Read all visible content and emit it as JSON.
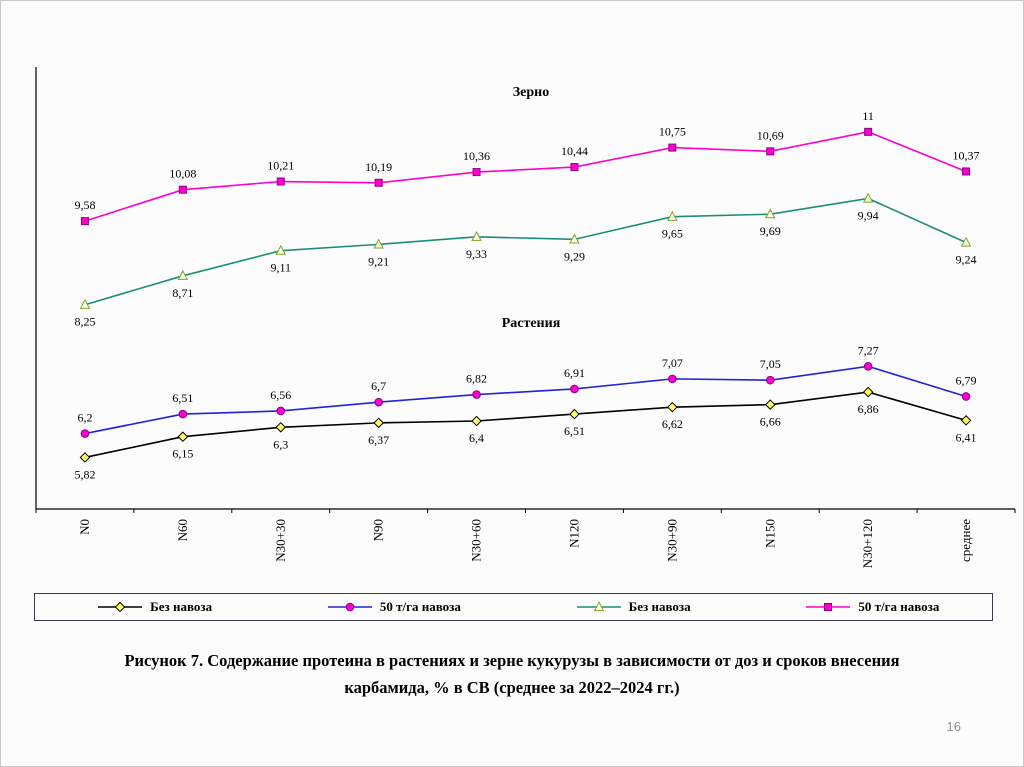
{
  "slide": {
    "caption_line1": "Рисунок 7. Содержание протеина в растениях и зерне кукурузы в зависимости от доз и сроков внесения",
    "caption_line2": "карбамида, % в СВ (среднее за 2022–2024 гг.)",
    "page_number": "16"
  },
  "chart_data": {
    "type": "line",
    "categories": [
      "N0",
      "N60",
      "N30+30",
      "N90",
      "N30+60",
      "N120",
      "N30+90",
      "N150",
      "N30+120",
      "среднее"
    ],
    "ylim": [
      5,
      12
    ],
    "grid": false,
    "legend_position": "bottom",
    "section_titles": [
      "Зерно",
      "Растения"
    ],
    "series": [
      {
        "name": "50 т/га навоза",
        "group": "Зерно",
        "values": [
          9.58,
          10.08,
          10.21,
          10.19,
          10.36,
          10.44,
          10.75,
          10.69,
          11,
          10.37
        ],
        "labels": [
          "9,58",
          "10,08",
          "10,21",
          "10,19",
          "10,36",
          "10,44",
          "10,75",
          "10,69",
          "11",
          "10,37"
        ],
        "line_color": "#FF00CC",
        "marker": "square",
        "marker_fill": "#FF00CC",
        "marker_stroke": "#880088",
        "label_side": "above"
      },
      {
        "name": "Без навоза",
        "group": "Зерно",
        "values": [
          8.25,
          8.71,
          9.11,
          9.21,
          9.33,
          9.29,
          9.65,
          9.69,
          9.94,
          9.24
        ],
        "labels": [
          "8,25",
          "8,71",
          "9,11",
          "9,21",
          "9,33",
          "9,29",
          "9,65",
          "9,69",
          "9,94",
          "9,24"
        ],
        "line_color": "#1A8E78",
        "marker": "triangle",
        "marker_fill": "#FDFDE8",
        "marker_stroke": "#7BA428",
        "label_side": "below"
      },
      {
        "name": "50 т/га навоза",
        "group": "Растения",
        "values": [
          6.2,
          6.51,
          6.56,
          6.7,
          6.82,
          6.91,
          7.07,
          7.05,
          7.27,
          6.79
        ],
        "labels": [
          "6,2",
          "6,51",
          "6,56",
          "6,7",
          "6,82",
          "6,91",
          "7,07",
          "7,05",
          "7,27",
          "6,79"
        ],
        "line_color": "#2222DD",
        "marker": "circle",
        "marker_fill": "#FF00CC",
        "marker_stroke": "#880088",
        "label_side": "above"
      },
      {
        "name": "Без навоза",
        "group": "Растения",
        "values": [
          5.82,
          6.15,
          6.3,
          6.37,
          6.4,
          6.51,
          6.62,
          6.66,
          6.86,
          6.41
        ],
        "labels": [
          "5,82",
          "6,15",
          "6,3",
          "6,37",
          "6,4",
          "6,51",
          "6,62",
          "6,66",
          "6,86",
          "6,41"
        ],
        "line_color": "#000000",
        "marker": "diamond",
        "marker_fill": "#FFFF66",
        "marker_stroke": "#000000",
        "label_side": "below"
      }
    ],
    "legend": [
      {
        "label": "Без навоза",
        "marker": "diamond",
        "line_color": "#000000",
        "marker_fill": "#FFFF66",
        "marker_stroke": "#000000"
      },
      {
        "label": "50 т/га навоза",
        "marker": "circle",
        "line_color": "#2222DD",
        "marker_fill": "#FF00CC",
        "marker_stroke": "#880088"
      },
      {
        "label": "Без навоза",
        "marker": "triangle",
        "line_color": "#1A8E78",
        "marker_fill": "#FDFDE8",
        "marker_stroke": "#7BA428"
      },
      {
        "label": "50 т/га навоза",
        "marker": "square",
        "line_color": "#FF00CC",
        "marker_fill": "#FF00CC",
        "marker_stroke": "#880088"
      }
    ]
  }
}
